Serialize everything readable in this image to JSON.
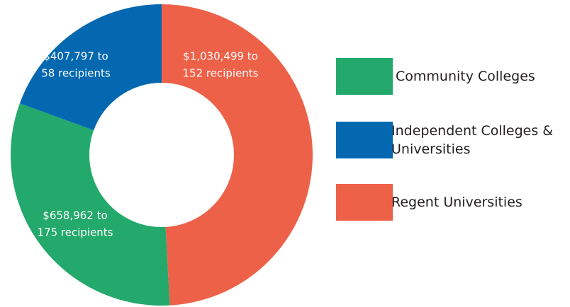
{
  "chart_data": {
    "type": "donut",
    "categories": [
      "Community Colleges",
      "Independent Colleges & Universities",
      "Regent Universities"
    ],
    "values": [
      658962,
      407797,
      1030499
    ],
    "value_labels": [
      [
        "$658,962 to",
        "175 recipients"
      ],
      [
        "$407,797 to",
        "58 recipients"
      ],
      [
        "$1,030,499 to",
        "152 recipients"
      ]
    ],
    "colors": [
      "#23a96b",
      "#0468b1",
      "#ee6149"
    ],
    "legend": "right"
  }
}
